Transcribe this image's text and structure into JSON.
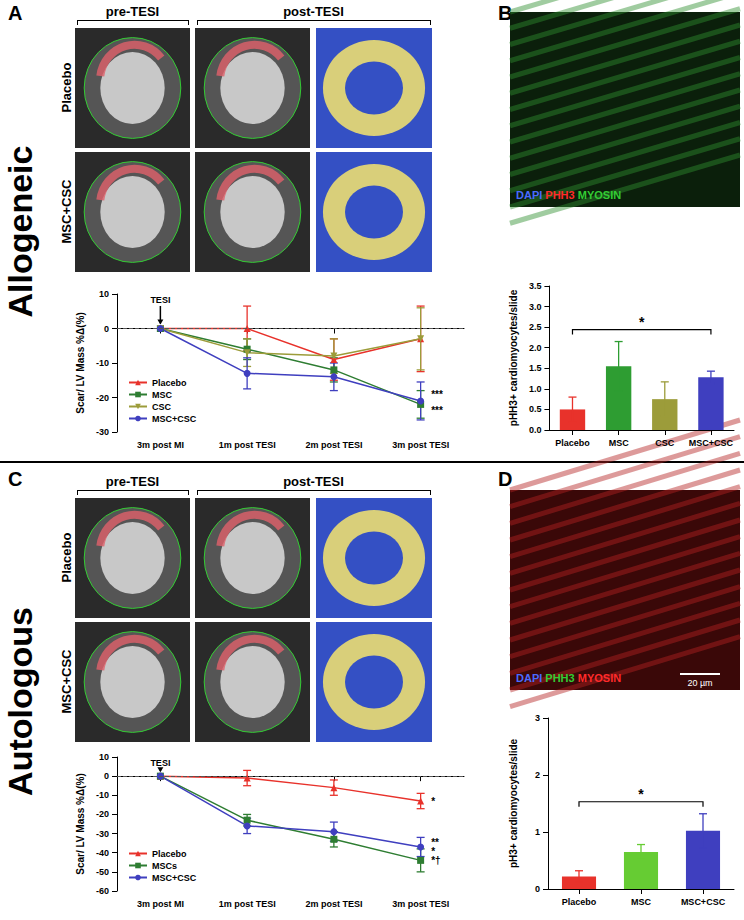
{
  "figure": {
    "panel_labels": [
      "A",
      "B",
      "C",
      "D"
    ],
    "groups": [
      {
        "name": "Allogeneic",
        "columns": [
          "pre-TESI",
          "post-TESI"
        ],
        "rows": [
          "Placebo",
          "MSC+CSC"
        ]
      },
      {
        "name": "Autologous",
        "columns": [
          "pre-TESI",
          "post-TESI"
        ],
        "rows": [
          "Placebo",
          "MSC+CSC"
        ]
      }
    ],
    "stains": [
      [
        {
          "text": "DAPI",
          "color": "#4a6bff"
        },
        {
          "text": "PHH3",
          "color": "#ff2a2a"
        },
        {
          "text": "MYOSIN",
          "color": "#33cc33"
        }
      ],
      [
        {
          "text": "DAPI",
          "color": "#4a6bff"
        },
        {
          "text": "PHH3",
          "color": "#33cc33"
        },
        {
          "text": "MYOSIN",
          "color": "#ff2a2a"
        }
      ]
    ],
    "scale_bar": "20 µm"
  },
  "chart_data": [
    {
      "type": "line",
      "y_label": "Scar/ LV Mass %Δ(%)",
      "categories": [
        "3m post MI",
        "1m post TESI",
        "2m post TESI",
        "3m post TESI"
      ],
      "series": [
        {
          "name": "Placebo",
          "color": "#e8322b",
          "marker": "triangle",
          "values": [
            0,
            0,
            -9,
            -3
          ],
          "errors": [
            0,
            6.5,
            6,
            9.5
          ]
        },
        {
          "name": "MSC",
          "color": "#2e7d32",
          "marker": "square",
          "values": [
            0,
            -6,
            -12,
            -22
          ],
          "errors": [
            0,
            3,
            3.5,
            4
          ],
          "end_label": [
            "***"
          ]
        },
        {
          "name": "CSC",
          "color": "#9c9c3a",
          "marker": "triangle-down",
          "values": [
            0,
            -7,
            -8,
            -3
          ],
          "errors": [
            0,
            4,
            5,
            9
          ]
        },
        {
          "name": "MSC+CSC",
          "color": "#3f3fbf",
          "marker": "circle",
          "values": [
            0,
            -13,
            -14,
            -21
          ],
          "errors": [
            0,
            4.5,
            4,
            5.5
          ],
          "end_label": [
            "***"
          ]
        }
      ],
      "ylim": [
        -30,
        10
      ],
      "yticks": [
        -30,
        -20,
        -10,
        0,
        10
      ],
      "grid": false,
      "legend": "lower left",
      "reference_line": 0,
      "annotations": [
        {
          "text": "TESI",
          "x": "3m post MI"
        }
      ]
    },
    {
      "type": "bar",
      "y_label": "pHH3+ cardiomyocytes/slide",
      "categories": [
        "Placebo",
        "MSC",
        "CSC",
        "MSC+CSC"
      ],
      "values": [
        0.5,
        1.55,
        0.75,
        1.28
      ],
      "errors": [
        0.3,
        0.6,
        0.42,
        0.15
      ],
      "colors": [
        "#e8322b",
        "#2e9d32",
        "#9c9c3a",
        "#3f3fbf"
      ],
      "ylim": [
        0,
        3.5
      ],
      "yticks": [
        {
          "value": 0,
          "label": "0.0"
        },
        0.5,
        {
          "value": 1,
          "label": "1.0"
        },
        1.5,
        {
          "value": 2,
          "label": "2.0"
        },
        2.5,
        {
          "value": 3,
          "label": "3.0"
        },
        3.5
      ],
      "grid": false,
      "annotations": [
        {
          "text": "*",
          "from": "Placebo",
          "to": "MSC+CSC"
        }
      ]
    },
    {
      "type": "line",
      "y_label": "Scar/ LV Mass %Δ(%)",
      "categories": [
        "3m post MI",
        "1m post TESI",
        "2m post TESI",
        "3m post TESI"
      ],
      "series": [
        {
          "name": "Placebo",
          "color": "#e8322b",
          "marker": "triangle",
          "values": [
            0,
            -1,
            -6,
            -13
          ],
          "errors": [
            0,
            4,
            4,
            4
          ],
          "end_label": [
            "*"
          ]
        },
        {
          "name": "MSCs",
          "color": "#2e7d32",
          "marker": "square",
          "values": [
            0,
            -23,
            -33,
            -44
          ],
          "errors": [
            0,
            3,
            4,
            6
          ],
          "end_label": [
            "*†"
          ]
        },
        {
          "name": "MSC+CSC",
          "color": "#3f3fbf",
          "marker": "circle",
          "values": [
            0,
            -26,
            -29,
            -37
          ],
          "errors": [
            0,
            4,
            5,
            5
          ],
          "end_label": [
            "**",
            "*"
          ]
        }
      ],
      "ylim": [
        -60,
        10
      ],
      "yticks": [
        -60,
        -50,
        -40,
        -30,
        -20,
        -10,
        0,
        10
      ],
      "grid": false,
      "legend": "lower left",
      "reference_line": 0,
      "annotations": [
        {
          "text": "TESI",
          "x": "3m post MI"
        }
      ]
    },
    {
      "type": "bar",
      "y_label": "pH3+ cardiomyocytes/slide",
      "categories": [
        "Placebo",
        "MSC",
        "MSC+CSC"
      ],
      "values": [
        0.22,
        0.65,
        1.02
      ],
      "errors": [
        0.1,
        0.13,
        0.3
      ],
      "colors": [
        "#e8322b",
        "#66cc33",
        "#3f3fbf"
      ],
      "ylim": [
        0,
        3
      ],
      "yticks": [
        0,
        1,
        2,
        3
      ],
      "grid": false,
      "annotations": [
        {
          "text": "*",
          "from": "Placebo",
          "to": "MSC+CSC"
        }
      ]
    }
  ]
}
